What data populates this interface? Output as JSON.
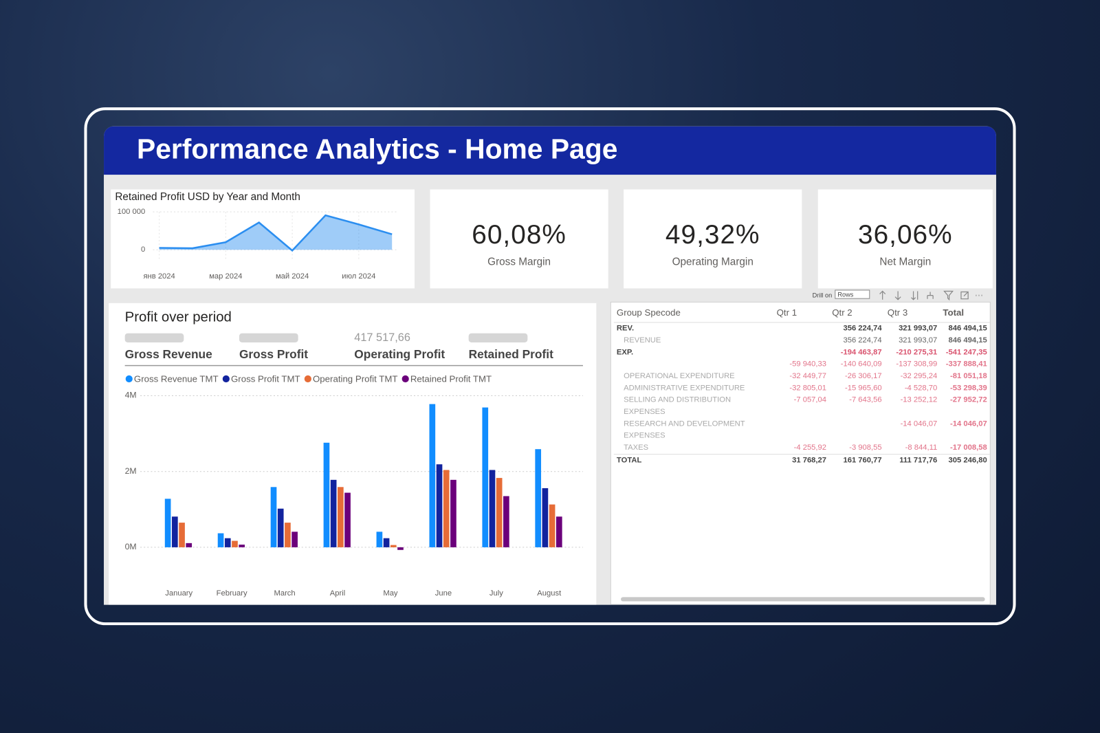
{
  "header": {
    "title": "Performance Analytics  - Home Page"
  },
  "kpis": [
    {
      "value": "60,08%",
      "label": "Gross Margin"
    },
    {
      "value": "49,32%",
      "label": "Operating Margin"
    },
    {
      "value": "36,06%",
      "label": "Net Margin"
    }
  ],
  "profit_summary": [
    {
      "label": "Gross Revenue",
      "value": null
    },
    {
      "label": "Gross Profit",
      "value": null
    },
    {
      "label": "Operating Profit",
      "value": "417 517,66"
    },
    {
      "label": "Retained Profit",
      "value": null
    }
  ],
  "chart_data": [
    {
      "type": "line",
      "title": "Retained Profit USD by Year and Month",
      "categories": [
        "янв 2024",
        null,
        "мар 2024",
        null,
        "май 2024",
        null,
        "июл 2024",
        null
      ],
      "values": [
        5000,
        4000,
        20000,
        72000,
        -2000,
        91000,
        67000,
        41000
      ],
      "color": "#2b8ef0",
      "ylim": [
        -10000,
        100000
      ],
      "yticks": [
        {
          "value": 100000,
          "label": "100 000"
        },
        0
      ],
      "grid": true
    },
    {
      "type": "bar",
      "title": "Profit over period",
      "categories": [
        "January",
        "February",
        "March",
        "April",
        "May",
        "June",
        "July",
        "August"
      ],
      "series": [
        {
          "name": "Gross Revenue TMT",
          "color": "#118dff",
          "values": [
            1280000,
            370000,
            1590000,
            2760000,
            410000,
            3780000,
            3690000,
            2590000
          ]
        },
        {
          "name": "Gross Profit TMT",
          "color": "#12239e",
          "values": [
            810000,
            240000,
            1020000,
            1780000,
            240000,
            2190000,
            2040000,
            1560000
          ]
        },
        {
          "name": "Operating Profit TMT",
          "color": "#e66c37",
          "values": [
            650000,
            170000,
            650000,
            1590000,
            60000,
            2040000,
            1830000,
            1130000
          ]
        },
        {
          "name": "Retained Profit TMT",
          "color": "#6b007b",
          "values": [
            110000,
            70000,
            410000,
            1440000,
            -70000,
            1780000,
            1350000,
            810000
          ]
        }
      ],
      "ylim": [
        -300000,
        4200000
      ],
      "yticks": [
        {
          "value": 0,
          "label": "0M"
        },
        {
          "value": 2000000,
          "label": "2M"
        },
        {
          "value": 4000000,
          "label": "4M"
        }
      ],
      "grid": true,
      "legend": "top"
    }
  ],
  "table": {
    "toolbar": {
      "drill_label": "Drill on",
      "drill_option": "Rows"
    },
    "columns": [
      "Group Specode",
      "Qtr 1",
      "Qtr 2",
      "Qtr 3",
      "Total"
    ],
    "rows": [
      [
        "REV.",
        null,
        "356 224,74",
        "321 993,07",
        "846 494,15"
      ],
      [
        "REVENUE",
        null,
        "356 224,74",
        "321 993,07",
        "846 494,15"
      ],
      [
        "EXP.",
        null,
        "-194 463,87",
        "-210 275,31",
        "-541 247,35"
      ],
      [
        null,
        "-59 940,33",
        "-140 640,09",
        "-137 308,99",
        "-337 888,41"
      ],
      [
        "OPERATIONAL EXPENDITURE",
        "-32 449,77",
        "-26 306,17",
        "-32 295,24",
        "-81 051,18"
      ],
      [
        "ADMINISTRATIVE EXPENDITURE",
        "-32 805,01",
        "-15 965,60",
        "-4 528,70",
        "-53 298,39"
      ],
      [
        "SELLING AND DISTRIBUTION EXPENSES",
        "-7 057,04",
        "-7 643,56",
        "-13 252,12",
        "-27 952,72"
      ],
      [
        "RESEARCH AND DEVELOPMENT EXPENSES",
        null,
        null,
        "-14 046,07",
        "-14 046,07"
      ],
      [
        "TAXES",
        "-4 255,92",
        "-3 908,55",
        "-8 844,11",
        "-17 008,58"
      ],
      [
        "Total",
        "31 768,27",
        "161 760,77",
        "111 717,76",
        "305 246,80"
      ]
    ]
  }
}
